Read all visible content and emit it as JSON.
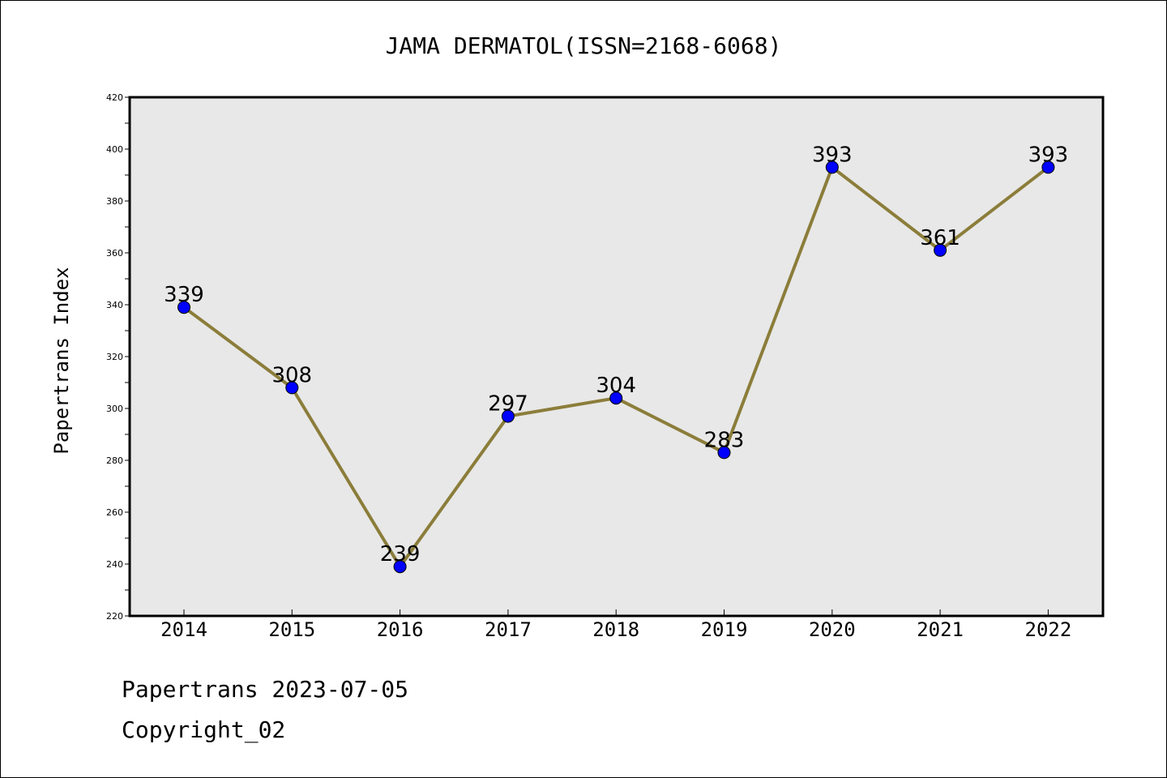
{
  "chart_data": {
    "type": "line",
    "title": "JAMA DERMATOL(ISSN=2168-6068)",
    "xlabel": "",
    "ylabel": "Papertrans Index",
    "categories": [
      "2014",
      "2015",
      "2016",
      "2017",
      "2018",
      "2019",
      "2020",
      "2021",
      "2022"
    ],
    "values": [
      339,
      308,
      239,
      297,
      304,
      283,
      393,
      361,
      393
    ],
    "ylim": [
      220,
      420
    ],
    "yticks": [
      220,
      240,
      260,
      280,
      300,
      320,
      340,
      360,
      380,
      400,
      420
    ],
    "grid": false,
    "legend": "none",
    "data_labels": true,
    "colors": {
      "line": "#8B7D3A",
      "marker": "#0000FF",
      "plot_background": "#E8E8E8",
      "axis": "#000000"
    }
  },
  "footer": {
    "source": "Papertrans 2023-07-05",
    "copyright": "Copyright_02"
  }
}
